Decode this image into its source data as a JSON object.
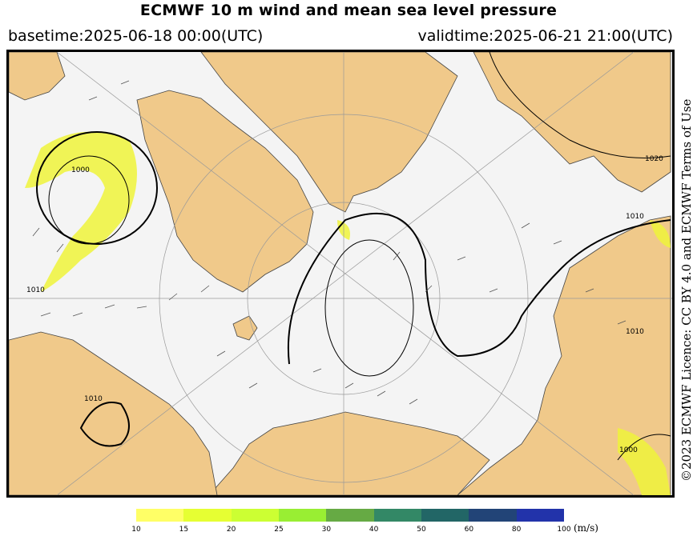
{
  "header": {
    "title": "ECMWF 10 m wind and mean sea level pressure",
    "basetime": "basetime:2025-06-18 00:00(UTC)",
    "validtime": "validtime:2025-06-21 21:00(UTC)"
  },
  "credit": "©2023 ECMWF Licence: CC BY 4.0 and ECMWF Terms of Use",
  "map": {
    "colors": {
      "land": "#f0c98a",
      "sea": "#f4f4f4",
      "isobar": "#000000",
      "wind_arrow": "#555555",
      "grid": "#999999"
    },
    "isobar_labels": [
      "1000",
      "1010",
      "1010",
      "1020",
      "1010",
      "1010",
      "1000"
    ]
  },
  "legend": {
    "unit": "(m/s)",
    "bins": [
      {
        "label": "10",
        "color": "#ffff66"
      },
      {
        "label": "15",
        "color": "#e6ff33"
      },
      {
        "label": "20",
        "color": "#ccff33"
      },
      {
        "label": "25",
        "color": "#99ee33"
      },
      {
        "label": "30",
        "color": "#66aa44"
      },
      {
        "label": "40",
        "color": "#338866"
      },
      {
        "label": "50",
        "color": "#226666"
      },
      {
        "label": "60",
        "color": "#224477"
      },
      {
        "label": "80",
        "color": "#2233aa"
      },
      {
        "label": "100",
        "color": "#3344cc"
      }
    ]
  }
}
